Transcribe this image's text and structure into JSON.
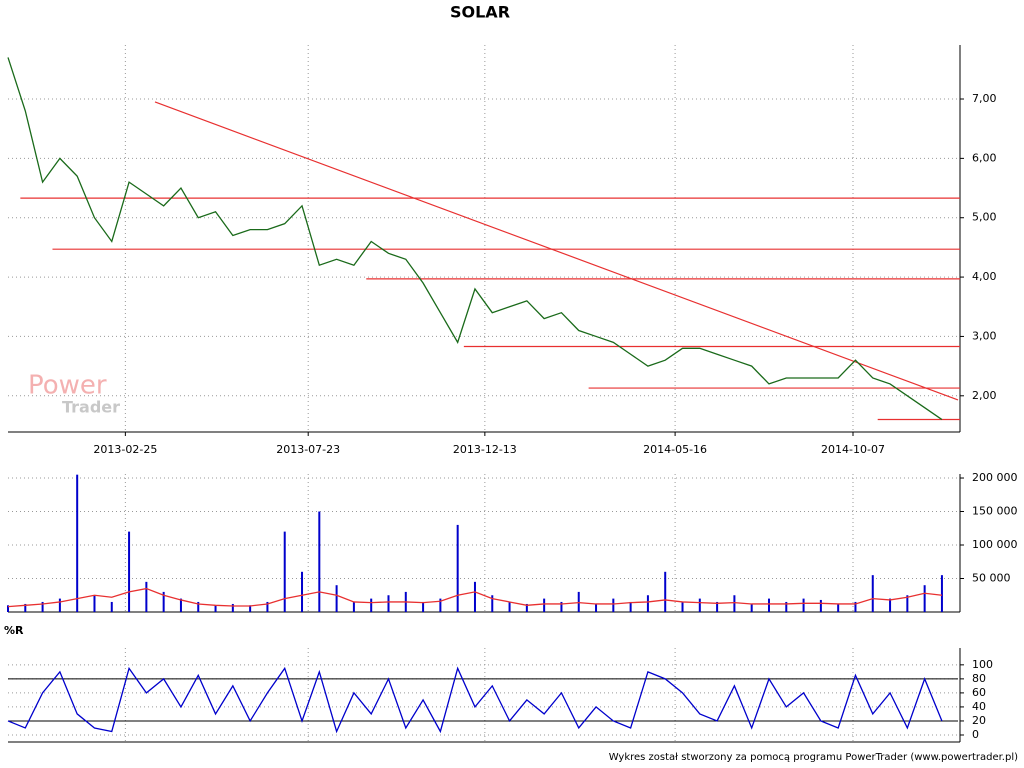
{
  "chart_data": [
    {
      "type": "line",
      "title": "SOLAR",
      "x": [
        "2012-11-22",
        "2012-12-06",
        "2012-12-20",
        "2013-01-03",
        "2013-01-17",
        "2013-01-31",
        "2013-02-14",
        "2013-02-28",
        "2013-03-14",
        "2013-03-28",
        "2013-04-11",
        "2013-04-25",
        "2013-05-09",
        "2013-05-23",
        "2013-06-06",
        "2013-06-20",
        "2013-07-04",
        "2013-07-18",
        "2013-08-01",
        "2013-08-15",
        "2013-08-29",
        "2013-09-12",
        "2013-09-26",
        "2013-10-10",
        "2013-10-24",
        "2013-11-07",
        "2013-11-21",
        "2013-12-05",
        "2013-12-19",
        "2014-01-02",
        "2014-01-16",
        "2014-01-30",
        "2014-02-13",
        "2014-02-27",
        "2014-03-13",
        "2014-03-27",
        "2014-04-10",
        "2014-04-24",
        "2014-05-08",
        "2014-05-22",
        "2014-06-05",
        "2014-06-19",
        "2014-07-03",
        "2014-07-17",
        "2014-07-31",
        "2014-08-14",
        "2014-08-28",
        "2014-09-11",
        "2014-09-25",
        "2014-10-09",
        "2014-10-23",
        "2014-11-06",
        "2014-11-20",
        "2014-12-04",
        "2014-12-18"
      ],
      "values": [
        7.7,
        6.8,
        5.6,
        6.0,
        5.7,
        5.0,
        4.6,
        5.6,
        5.4,
        5.2,
        5.5,
        5.0,
        5.1,
        4.7,
        4.8,
        4.8,
        4.9,
        5.2,
        4.2,
        4.3,
        4.2,
        4.6,
        4.4,
        4.3,
        3.9,
        3.4,
        2.9,
        3.8,
        3.4,
        3.5,
        3.6,
        3.3,
        3.4,
        3.1,
        3.0,
        2.9,
        2.7,
        2.5,
        2.6,
        2.8,
        2.8,
        2.7,
        2.6,
        2.5,
        2.2,
        2.3,
        2.3,
        2.3,
        2.3,
        2.6,
        2.3,
        2.2,
        2.0,
        1.8,
        1.6
      ],
      "color": "#1a6a1a",
      "xlim": [
        "2012-11-22",
        "2014-12-31"
      ],
      "xticks": [
        "2013-02-25",
        "2013-07-23",
        "2013-12-13",
        "2014-05-16",
        "2014-10-07"
      ],
      "ylim": [
        1.39,
        7.91
      ],
      "yticks": [
        {
          "value": 2,
          "label": "2,00"
        },
        {
          "value": 3,
          "label": "3,00"
        },
        {
          "value": 4,
          "label": "4,00"
        },
        {
          "value": 5,
          "label": "5,00"
        },
        {
          "value": 6,
          "label": "6,00"
        },
        {
          "value": 7,
          "label": "7,00"
        }
      ],
      "support_lines": [
        {
          "value": 5.33,
          "start": "2012-12-02"
        },
        {
          "value": 4.47,
          "start": "2012-12-28"
        },
        {
          "value": 3.97,
          "start": "2013-09-08"
        },
        {
          "value": 2.83,
          "start": "2013-11-26"
        },
        {
          "value": 2.13,
          "start": "2014-03-07"
        },
        {
          "value": 1.6,
          "start": "2014-10-27"
        }
      ],
      "trend_line": {
        "start": "2013-03-21",
        "end": "2014-12-31",
        "from": 6.95,
        "to": 1.93
      },
      "line_color": "#e83030",
      "grid": true
    },
    {
      "type": "bar",
      "x": [
        "2012-11-22",
        "2012-12-06",
        "2012-12-20",
        "2013-01-03",
        "2013-01-17",
        "2013-01-31",
        "2013-02-14",
        "2013-02-28",
        "2013-03-14",
        "2013-03-28",
        "2013-04-11",
        "2013-04-25",
        "2013-05-09",
        "2013-05-23",
        "2013-06-06",
        "2013-06-20",
        "2013-07-04",
        "2013-07-18",
        "2013-08-01",
        "2013-08-15",
        "2013-08-29",
        "2013-09-12",
        "2013-09-26",
        "2013-10-10",
        "2013-10-24",
        "2013-11-07",
        "2013-11-21",
        "2013-12-05",
        "2013-12-19",
        "2014-01-02",
        "2014-01-16",
        "2014-01-30",
        "2014-02-13",
        "2014-02-27",
        "2014-03-13",
        "2014-03-27",
        "2014-04-10",
        "2014-04-24",
        "2014-05-08",
        "2014-05-22",
        "2014-06-05",
        "2014-06-19",
        "2014-07-03",
        "2014-07-17",
        "2014-07-31",
        "2014-08-14",
        "2014-08-28",
        "2014-09-11",
        "2014-09-25",
        "2014-10-09",
        "2014-10-23",
        "2014-11-06",
        "2014-11-20",
        "2014-12-04",
        "2014-12-18"
      ],
      "values": [
        10000,
        12000,
        15000,
        20000,
        205000,
        25000,
        15000,
        120000,
        45000,
        30000,
        20000,
        15000,
        10000,
        12000,
        10000,
        15000,
        120000,
        60000,
        150000,
        40000,
        15000,
        20000,
        25000,
        30000,
        15000,
        20000,
        130000,
        45000,
        25000,
        15000,
        12000,
        20000,
        15000,
        30000,
        12000,
        20000,
        15000,
        25000,
        60000,
        15000,
        20000,
        15000,
        25000,
        12000,
        20000,
        15000,
        20000,
        18000,
        12000,
        15000,
        55000,
        20000,
        25000,
        40000,
        55000
      ],
      "ma": [
        8000,
        10000,
        12000,
        15000,
        20000,
        25000,
        22000,
        30000,
        35000,
        25000,
        18000,
        12000,
        10000,
        9000,
        9000,
        12000,
        20000,
        25000,
        30000,
        25000,
        15000,
        14000,
        15000,
        15000,
        14000,
        16000,
        25000,
        30000,
        20000,
        15000,
        10000,
        12000,
        12000,
        14000,
        12000,
        12000,
        14000,
        15000,
        18000,
        15000,
        14000,
        13000,
        14000,
        12000,
        12000,
        12000,
        13000,
        13000,
        12000,
        12000,
        20000,
        18000,
        22000,
        28000,
        25000
      ],
      "color": "#0000cc",
      "ma_color": "#e83030",
      "xlim": [
        "2012-11-22",
        "2014-12-31"
      ],
      "xticks": [
        "2013-02-25",
        "2013-07-23",
        "2013-12-13",
        "2014-05-16",
        "2014-10-07"
      ],
      "ylim": [
        0,
        206000
      ],
      "yticks": [
        {
          "value": 50000,
          "label": "50 000"
        },
        {
          "value": 100000,
          "label": "100 000"
        },
        {
          "value": 150000,
          "label": "150 000"
        },
        {
          "value": 200000,
          "label": "200 000"
        }
      ],
      "grid": true
    },
    {
      "type": "line",
      "title": "%R",
      "x": [
        "2012-11-22",
        "2012-12-06",
        "2012-12-20",
        "2013-01-03",
        "2013-01-17",
        "2013-01-31",
        "2013-02-14",
        "2013-02-28",
        "2013-03-14",
        "2013-03-28",
        "2013-04-11",
        "2013-04-25",
        "2013-05-09",
        "2013-05-23",
        "2013-06-06",
        "2013-06-20",
        "2013-07-04",
        "2013-07-18",
        "2013-08-01",
        "2013-08-15",
        "2013-08-29",
        "2013-09-12",
        "2013-09-26",
        "2013-10-10",
        "2013-10-24",
        "2013-11-07",
        "2013-11-21",
        "2013-12-05",
        "2013-12-19",
        "2014-01-02",
        "2014-01-16",
        "2014-01-30",
        "2014-02-13",
        "2014-02-27",
        "2014-03-13",
        "2014-03-27",
        "2014-04-10",
        "2014-04-24",
        "2014-05-08",
        "2014-05-22",
        "2014-06-05",
        "2014-06-19",
        "2014-07-03",
        "2014-07-17",
        "2014-07-31",
        "2014-08-14",
        "2014-08-28",
        "2014-09-11",
        "2014-09-25",
        "2014-10-09",
        "2014-10-23",
        "2014-11-06",
        "2014-11-20",
        "2014-12-04",
        "2014-12-18"
      ],
      "values": [
        20,
        10,
        60,
        90,
        30,
        10,
        5,
        95,
        60,
        80,
        40,
        85,
        30,
        70,
        20,
        60,
        95,
        20,
        90,
        5,
        60,
        30,
        80,
        10,
        50,
        5,
        95,
        40,
        70,
        20,
        50,
        30,
        60,
        10,
        40,
        20,
        10,
        90,
        80,
        60,
        30,
        20,
        70,
        10,
        80,
        40,
        60,
        20,
        10,
        85,
        30,
        60,
        10,
        80,
        20
      ],
      "color": "#0000cc",
      "xlim": [
        "2012-11-22",
        "2014-12-31"
      ],
      "xticks": [
        "2013-02-25",
        "2013-07-23",
        "2013-12-13",
        "2014-05-16",
        "2014-10-07"
      ],
      "ylim": [
        -10,
        124
      ],
      "yticks": [
        0,
        20,
        40,
        60,
        80,
        100
      ],
      "levels": [
        20,
        80
      ],
      "grid": true
    }
  ],
  "watermark": [
    "Power",
    "Trader"
  ],
  "footer": "Wykres został stworzony za pomocą programu PowerTrader (www.powertrader.pl)"
}
